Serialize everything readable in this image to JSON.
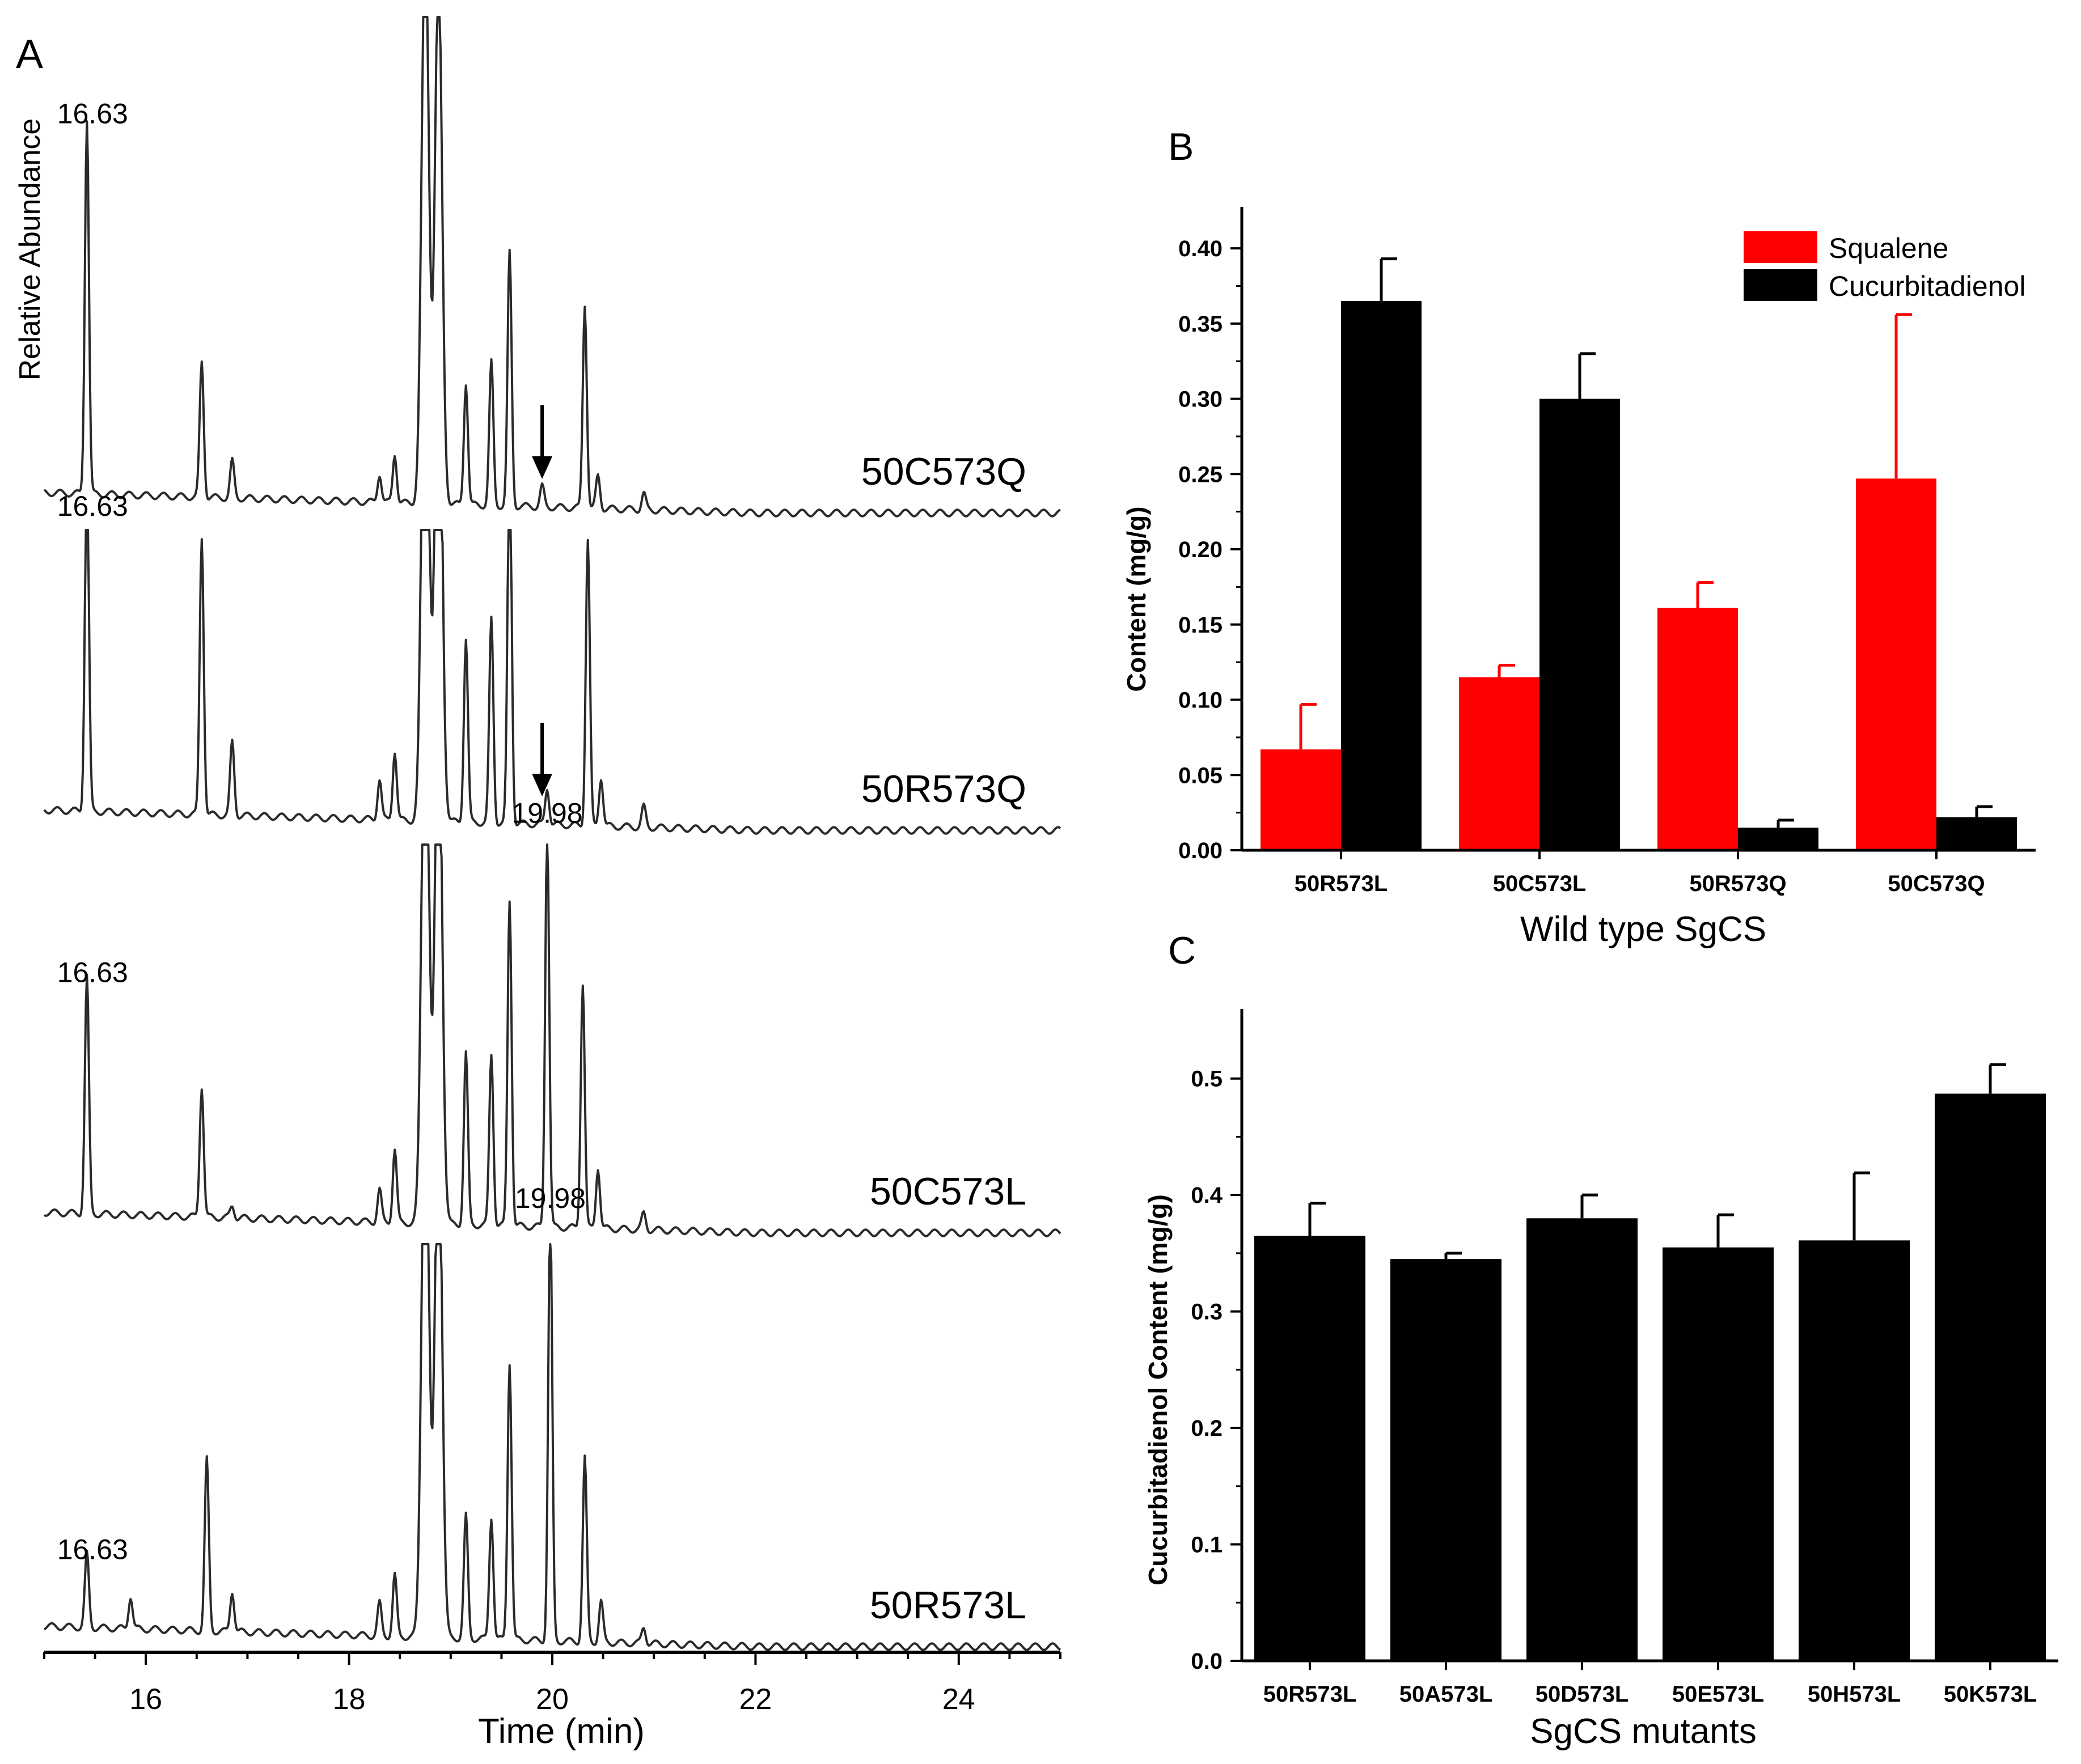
{
  "figure": {
    "colors": {
      "squalene": "#ff0000",
      "cucurbitadienol": "#000000",
      "trace": "#2a2a2a",
      "axis": "#000000"
    }
  },
  "chart_data": [
    {
      "panel": "A",
      "type": "line",
      "title": "",
      "xlabel": "Time (min)",
      "ylabel": "Relative Abundance",
      "xlim": [
        15,
        25
      ],
      "xticks": [
        16,
        18,
        20,
        22,
        24
      ],
      "traces": [
        {
          "name": "50C573Q",
          "peak_label": "16.63",
          "arrow": true,
          "peaks": [
            {
              "t": 15.42,
              "h": 0.92
            },
            {
              "t": 16.55,
              "h": 0.33
            },
            {
              "t": 16.85,
              "h": 0.09
            },
            {
              "t": 18.3,
              "h": 0.07
            },
            {
              "t": 18.45,
              "h": 0.12
            },
            {
              "t": 18.75,
              "h": 1.4
            },
            {
              "t": 18.88,
              "h": 1.3
            },
            {
              "t": 19.15,
              "h": 0.3
            },
            {
              "t": 19.4,
              "h": 0.35
            },
            {
              "t": 19.58,
              "h": 0.62
            },
            {
              "t": 19.9,
              "h": 0.05
            },
            {
              "t": 20.32,
              "h": 0.5
            },
            {
              "t": 20.45,
              "h": 0.08
            },
            {
              "t": 20.9,
              "h": 0.04
            }
          ]
        },
        {
          "name": "50R573Q",
          "peak_label": "16.63",
          "arrow": true,
          "peaks": [
            {
              "t": 15.42,
              "h": 0.85
            },
            {
              "t": 16.55,
              "h": 0.68
            },
            {
              "t": 16.85,
              "h": 0.18
            },
            {
              "t": 18.3,
              "h": 0.1
            },
            {
              "t": 18.45,
              "h": 0.17
            },
            {
              "t": 18.75,
              "h": 1.4
            },
            {
              "t": 18.88,
              "h": 1.3
            },
            {
              "t": 19.15,
              "h": 0.45
            },
            {
              "t": 19.4,
              "h": 0.5
            },
            {
              "t": 19.58,
              "h": 0.93
            },
            {
              "t": 19.95,
              "h": 0.09
            },
            {
              "t": 20.35,
              "h": 0.7
            },
            {
              "t": 20.48,
              "h": 0.12
            },
            {
              "t": 20.9,
              "h": 0.05
            }
          ]
        },
        {
          "name": "50C573L",
          "peak_label": "16.63",
          "peak_label_2": "19.98",
          "arrow": false,
          "peaks": [
            {
              "t": 15.42,
              "h": 0.58
            },
            {
              "t": 16.55,
              "h": 0.32
            },
            {
              "t": 16.85,
              "h": 0.03
            },
            {
              "t": 18.3,
              "h": 0.08
            },
            {
              "t": 18.45,
              "h": 0.18
            },
            {
              "t": 18.75,
              "h": 1.4
            },
            {
              "t": 18.88,
              "h": 1.3
            },
            {
              "t": 19.15,
              "h": 0.42
            },
            {
              "t": 19.4,
              "h": 0.42
            },
            {
              "t": 19.58,
              "h": 0.8
            },
            {
              "t": 19.95,
              "h": 0.98
            },
            {
              "t": 20.3,
              "h": 0.6
            },
            {
              "t": 20.45,
              "h": 0.15
            },
            {
              "t": 20.9,
              "h": 0.04
            }
          ]
        },
        {
          "name": "50R573L",
          "peak_label": "16.63",
          "peak_label_2": "19.98",
          "arrow": false,
          "peaks": [
            {
              "t": 15.42,
              "h": 0.18
            },
            {
              "t": 15.85,
              "h": 0.08
            },
            {
              "t": 16.6,
              "h": 0.42
            },
            {
              "t": 16.85,
              "h": 0.1
            },
            {
              "t": 18.3,
              "h": 0.08
            },
            {
              "t": 18.45,
              "h": 0.15
            },
            {
              "t": 18.75,
              "h": 1.4
            },
            {
              "t": 18.88,
              "h": 1.3
            },
            {
              "t": 19.15,
              "h": 0.3
            },
            {
              "t": 19.4,
              "h": 0.3
            },
            {
              "t": 19.58,
              "h": 0.68
            },
            {
              "t": 19.98,
              "h": 1.05
            },
            {
              "t": 20.32,
              "h": 0.45
            },
            {
              "t": 20.48,
              "h": 0.1
            },
            {
              "t": 20.9,
              "h": 0.04
            }
          ]
        }
      ]
    },
    {
      "panel": "B",
      "type": "bar",
      "title": "",
      "xlabel": "Wild type SgCS",
      "ylabel": "Content (mg/g)",
      "ylim": [
        0,
        0.42
      ],
      "yticks": [
        "0.00",
        "0.05",
        "0.10",
        "0.15",
        "0.20",
        "0.25",
        "0.30",
        "0.35",
        "0.40"
      ],
      "categories": [
        "50R573L",
        "50C573L",
        "50R573Q",
        "50C573Q"
      ],
      "legend": "top-right",
      "series": [
        {
          "name": "Squalene",
          "color": "#ff0000",
          "values": [
            0.067,
            0.115,
            0.161,
            0.247
          ],
          "errors": [
            0.03,
            0.008,
            0.017,
            0.109
          ]
        },
        {
          "name": "Cucurbitadienol",
          "color": "#000000",
          "values": [
            0.365,
            0.3,
            0.015,
            0.022
          ],
          "errors": [
            0.028,
            0.03,
            0.005,
            0.007
          ]
        }
      ]
    },
    {
      "panel": "C",
      "type": "bar",
      "title": "",
      "xlabel": "SgCS mutants",
      "ylabel": "Cucurbitadienol Content (mg/g)",
      "ylim": [
        0,
        0.55
      ],
      "yticks": [
        "0.0",
        "0.1",
        "0.2",
        "0.3",
        "0.4",
        "0.5"
      ],
      "categories": [
        "50R573L",
        "50A573L",
        "50D573L",
        "50E573L",
        "50H573L",
        "50K573L"
      ],
      "series": [
        {
          "name": "Cucurbitadienol",
          "color": "#000000",
          "values": [
            0.365,
            0.345,
            0.38,
            0.355,
            0.361,
            0.487
          ],
          "errors": [
            0.028,
            0.005,
            0.02,
            0.028,
            0.058,
            0.025
          ]
        }
      ]
    }
  ]
}
